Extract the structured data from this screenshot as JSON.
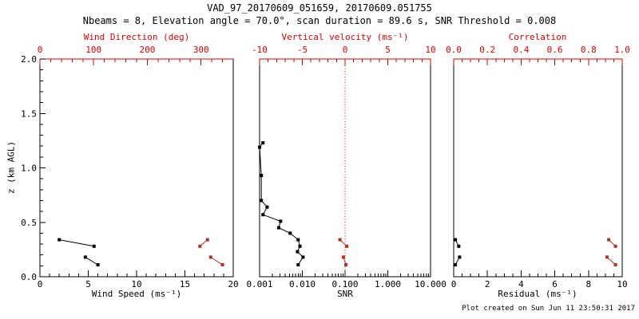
{
  "header": {
    "title": "VAD_97_20170609_051659, 20170609.051755",
    "subtitle": "Nbeams = 8, Elevation angle = 70.0°, scan duration = 89.6 s, SNR Threshold = 0.008"
  },
  "footer": {
    "created": "Plot created on Sun Jun 11 23:50:31 2017"
  },
  "colors": {
    "axis_red": "#dd0000",
    "data_red": "#aa3322",
    "data_black": "#000000",
    "background": "#ffffff"
  },
  "y_axis": {
    "label": "z (km AGL)",
    "range": [
      0,
      2
    ],
    "ticks": [
      0.0,
      0.5,
      1.0,
      1.5,
      2.0
    ],
    "tick_labels": [
      "0.0",
      "0.5",
      "1.0",
      "1.5",
      "2.0"
    ],
    "minor_step": 0.1
  },
  "chart_data": [
    {
      "id": "wind",
      "type": "line",
      "bottom_axis": {
        "label": "Wind Speed (ms⁻¹)",
        "range": [
          0,
          20
        ],
        "ticks": [
          0,
          5,
          10,
          15,
          20
        ],
        "tick_labels": [
          "0",
          "5",
          "10",
          "15",
          "20"
        ],
        "minor_step": 1,
        "color": "#000000"
      },
      "top_axis": {
        "label": "Wind Direction (deg)",
        "range": [
          0,
          360
        ],
        "ticks": [
          0,
          100,
          200,
          300
        ],
        "tick_labels": [
          "0",
          "100",
          "200",
          "300"
        ],
        "minor_step": 20,
        "color": "#dd0000"
      },
      "series": [
        {
          "name": "wind-speed",
          "axis": "bottom",
          "color": "#000000",
          "segments": [
            [
              [
                2.0,
                0.34
              ],
              [
                5.6,
                0.28
              ]
            ],
            [
              [
                4.7,
                0.18
              ],
              [
                6.0,
                0.11
              ]
            ]
          ]
        },
        {
          "name": "wind-direction",
          "axis": "top",
          "color": "#aa3322",
          "segments": [
            [
              [
                312,
                0.34
              ],
              [
                298,
                0.28
              ]
            ],
            [
              [
                318,
                0.18
              ],
              [
                340,
                0.11
              ]
            ]
          ]
        }
      ]
    },
    {
      "id": "snr",
      "type": "line",
      "bottom_axis": {
        "label": "SNR",
        "scale": "log",
        "range": [
          0.001,
          10
        ],
        "ticks": [
          0.001,
          0.01,
          0.1,
          1,
          10
        ],
        "tick_labels": [
          "0.001",
          "0.010",
          "0.100",
          "1.000",
          "10.000"
        ],
        "color": "#000000"
      },
      "top_axis": {
        "label": "Vertical velocity (ms⁻¹)",
        "range": [
          -10,
          10
        ],
        "ticks": [
          -10,
          -5,
          0,
          5,
          10
        ],
        "tick_labels": [
          "-10",
          "-5",
          "0",
          "5",
          "10"
        ],
        "minor_step": 1,
        "color": "#dd0000"
      },
      "reference_line": {
        "axis": "top",
        "value": 0,
        "style": "dotted",
        "color": "#dd0000"
      },
      "series": [
        {
          "name": "snr-profile",
          "axis": "bottom",
          "color": "#000000",
          "segments": [
            [
              [
                0.0012,
                1.23
              ],
              [
                0.001,
                1.19
              ],
              [
                0.0011,
                0.93
              ],
              [
                0.0011,
                0.7
              ],
              [
                0.0015,
                0.64
              ],
              [
                0.0012,
                0.57
              ],
              [
                0.0031,
                0.51
              ],
              [
                0.0028,
                0.45
              ],
              [
                0.0052,
                0.4
              ],
              [
                0.008,
                0.34
              ],
              [
                0.0088,
                0.28
              ],
              [
                0.0077,
                0.23
              ],
              [
                0.0104,
                0.18
              ],
              [
                0.008,
                0.11
              ]
            ]
          ]
        },
        {
          "name": "vertical-velocity",
          "axis": "top",
          "color": "#aa3322",
          "segments": [
            [
              [
                -0.6,
                0.34
              ],
              [
                0.2,
                0.28
              ]
            ],
            [
              [
                -0.2,
                0.18
              ],
              [
                0.1,
                0.11
              ]
            ]
          ]
        }
      ]
    },
    {
      "id": "residual",
      "type": "line",
      "bottom_axis": {
        "label": "Residual (ms⁻¹)",
        "range": [
          0,
          10
        ],
        "ticks": [
          0,
          2,
          4,
          6,
          8,
          10
        ],
        "tick_labels": [
          "0",
          "2",
          "4",
          "6",
          "8",
          "10"
        ],
        "minor_step": 0.5,
        "color": "#000000"
      },
      "top_axis": {
        "label": "Correlation",
        "range": [
          0,
          1
        ],
        "ticks": [
          0.0,
          0.2,
          0.4,
          0.6,
          0.8,
          1.0
        ],
        "tick_labels": [
          "0.0",
          "0.2",
          "0.4",
          "0.6",
          "0.8",
          "1.0"
        ],
        "minor_step": 0.05,
        "color": "#dd0000"
      },
      "series": [
        {
          "name": "residual",
          "axis": "bottom",
          "color": "#000000",
          "segments": [
            [
              [
                0.1,
                0.34
              ],
              [
                0.3,
                0.28
              ]
            ],
            [
              [
                0.35,
                0.18
              ],
              [
                0.1,
                0.11
              ]
            ]
          ]
        },
        {
          "name": "correlation",
          "axis": "top",
          "color": "#aa3322",
          "segments": [
            [
              [
                0.92,
                0.34
              ],
              [
                0.96,
                0.28
              ]
            ],
            [
              [
                0.91,
                0.18
              ],
              [
                0.96,
                0.11
              ]
            ]
          ]
        }
      ]
    }
  ]
}
